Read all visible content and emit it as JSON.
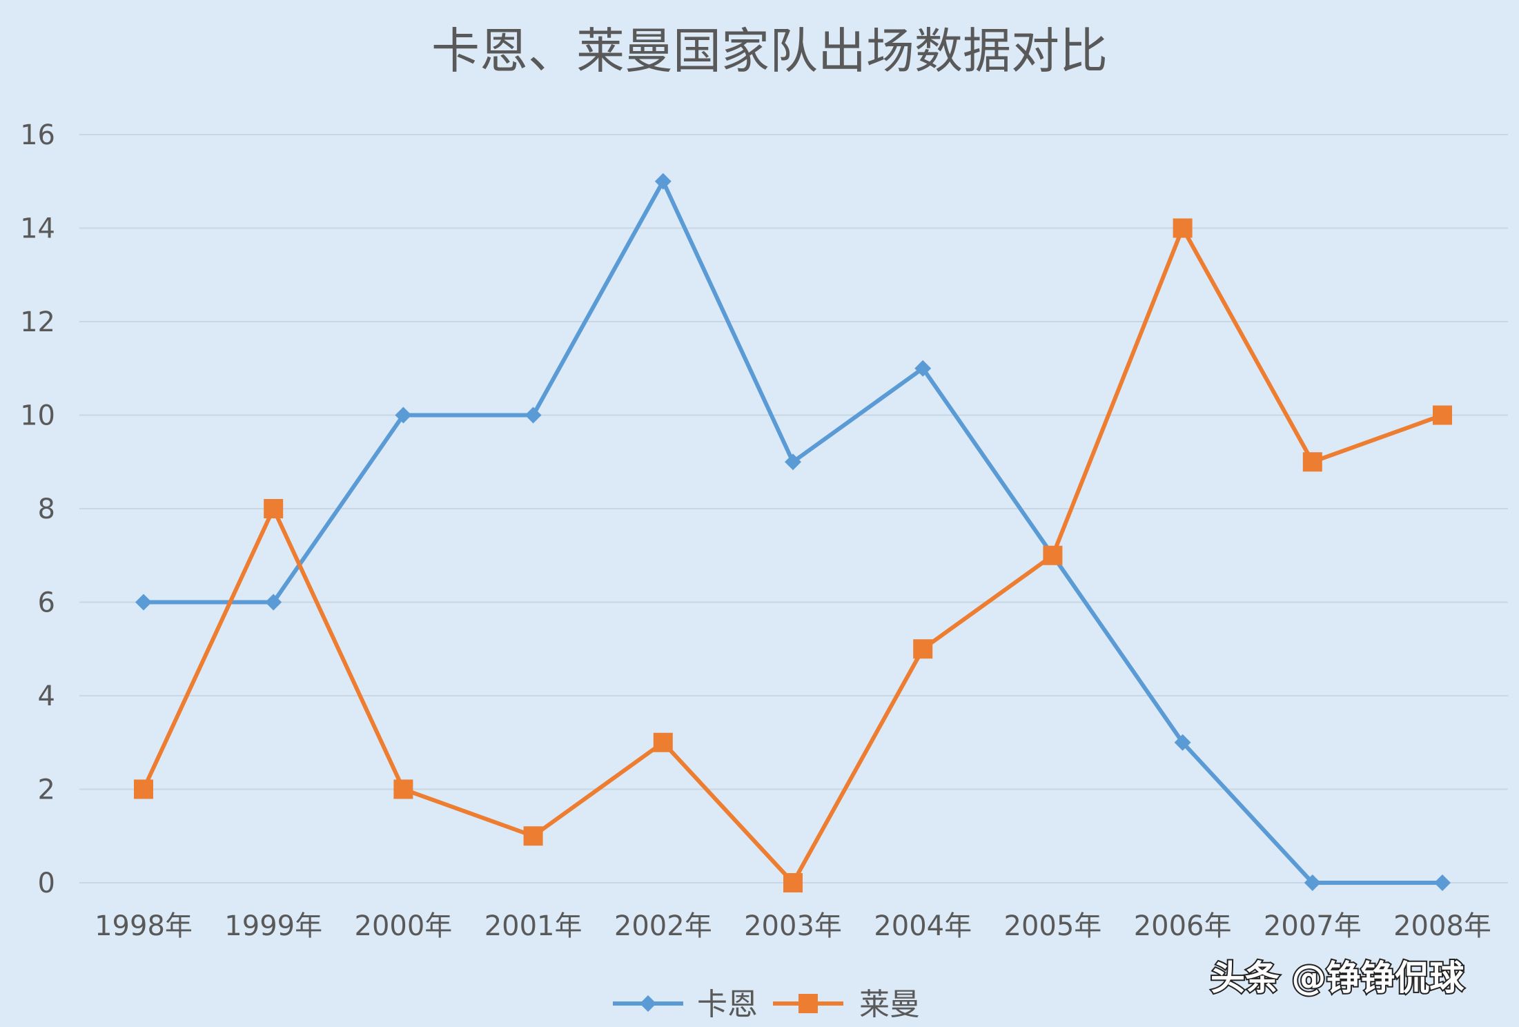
{
  "chart_data": {
    "type": "line",
    "title": "卡恩、莱曼国家队出场数据对比",
    "categories": [
      "1998年",
      "1999年",
      "2000年",
      "2001年",
      "2002年",
      "2003年",
      "2004年",
      "2005年",
      "2006年",
      "2007年",
      "2008年"
    ],
    "series": [
      {
        "name": "卡恩",
        "color": "#5b9bd5",
        "marker": "diamond",
        "values": [
          6,
          6,
          10,
          10,
          15,
          9,
          11,
          7,
          3,
          0,
          0
        ]
      },
      {
        "name": "莱曼",
        "color": "#ed7d31",
        "marker": "square",
        "values": [
          2,
          8,
          2,
          1,
          3,
          0,
          5,
          7,
          14,
          9,
          10
        ]
      }
    ],
    "ylim": [
      0,
      16
    ],
    "yticks": [
      0,
      2,
      4,
      6,
      8,
      10,
      12,
      14,
      16
    ],
    "grid": true,
    "legend_position": "bottom",
    "background_color": "#dce9f6"
  },
  "watermark": "头条 @铮铮侃球"
}
